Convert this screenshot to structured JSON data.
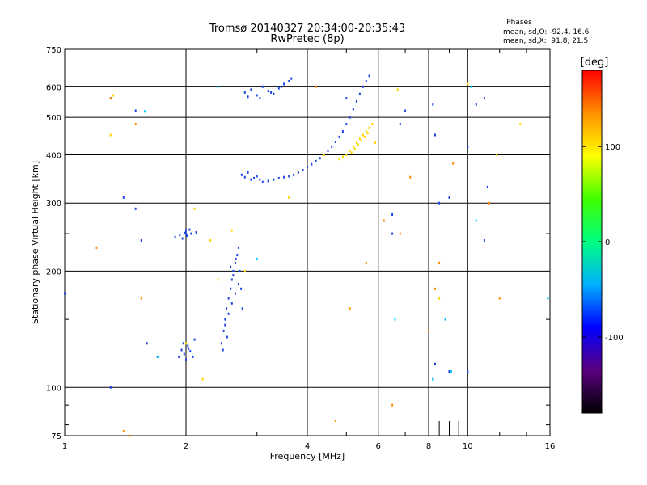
{
  "chart_data": {
    "type": "scatter",
    "title": "Tromsø 20140327 20:34:00-20:35:43",
    "subtitle": "RwPretec (8p)",
    "xlabel": "Frequency [MHz]",
    "ylabel": "Stationary phase Virtual Height [km]",
    "x_scale": "log",
    "y_scale": "log",
    "xlim": [
      1,
      16
    ],
    "ylim": [
      75,
      750
    ],
    "x_ticks": [
      1,
      2,
      4,
      6,
      8,
      10,
      16
    ],
    "y_ticks": [
      75,
      100,
      200,
      300,
      400,
      500,
      600,
      750
    ],
    "grid": true,
    "stats": {
      "heading": "Phases",
      "line1": "mean, sd,O: -92.4, 16.6",
      "line2": "mean, sd,X:  91.8, 21.5"
    },
    "colorbar": {
      "label": "[deg]",
      "min": -180,
      "max": 180,
      "ticks": [
        100,
        0,
        -100
      ],
      "colors": [
        "#000000",
        "#5a0080",
        "#0000ff",
        "#00b0ff",
        "#00ff80",
        "#40ff00",
        "#ffff00",
        "#ff9000",
        "#ff0000"
      ]
    },
    "series": [
      {
        "color": "#1e46e6",
        "x": [
          1.92,
          1.95,
          1.98,
          2.0,
          2.02,
          2.05,
          2.08,
          1.97,
          2.03,
          2.1,
          2.0,
          1.93,
          1.88,
          2.12,
          2.0,
          1.96,
          2.04,
          2.06,
          2.01,
          1.99
        ],
        "y": [
          120,
          125,
          122,
          118,
          128,
          124,
          120,
          130,
          126,
          133,
          250,
          248,
          245,
          252,
          255,
          243,
          256,
          250,
          247,
          251
        ]
      },
      {
        "color": "#1e46e6",
        "x": [
          2.45,
          2.48,
          2.5,
          2.52,
          2.55,
          2.58,
          2.6,
          2.62,
          2.65,
          2.68,
          2.7,
          2.72,
          2.74,
          2.76,
          2.5,
          2.55,
          2.6,
          2.65,
          2.7,
          2.62,
          2.58,
          2.66,
          2.53,
          2.47
        ],
        "y": [
          130,
          140,
          150,
          160,
          170,
          180,
          190,
          200,
          210,
          220,
          230,
          200,
          180,
          160,
          145,
          155,
          165,
          175,
          185,
          195,
          205,
          215,
          135,
          125
        ]
      },
      {
        "color": "#1e46e6",
        "x": [
          2.75,
          2.8,
          2.85,
          2.9,
          2.95,
          3.0,
          3.05,
          3.1,
          3.2,
          3.3,
          3.4,
          3.5,
          3.6,
          3.7,
          3.8,
          3.9,
          4.0,
          4.1,
          4.2,
          4.3,
          4.4,
          4.5,
          4.6,
          4.7,
          4.8,
          4.9,
          5.0,
          5.1,
          5.2,
          5.3,
          5.4,
          5.5,
          5.6,
          5.7
        ],
        "y": [
          355,
          350,
          360,
          345,
          348,
          352,
          345,
          340,
          342,
          345,
          348,
          350,
          352,
          355,
          360,
          365,
          372,
          378,
          385,
          392,
          400,
          410,
          420,
          432,
          445,
          460,
          480,
          500,
          525,
          550,
          575,
          600,
          620,
          640
        ]
      },
      {
        "color": "#1e46e6",
        "x": [
          2.8,
          2.9,
          3.0,
          3.1,
          3.2,
          3.3,
          3.4,
          3.5,
          3.6,
          3.65,
          2.85,
          3.05,
          3.25,
          3.45
        ],
        "y": [
          580,
          590,
          570,
          600,
          585,
          575,
          595,
          610,
          620,
          630,
          565,
          560,
          580,
          600
        ]
      },
      {
        "color": "#ffd700",
        "x": [
          5.0,
          5.1,
          5.2,
          5.3,
          5.4,
          5.5,
          5.6,
          5.7,
          5.8,
          5.65,
          5.55,
          5.45,
          5.35,
          5.25,
          5.15,
          4.9,
          4.8
        ],
        "y": [
          400,
          410,
          420,
          430,
          440,
          450,
          460,
          470,
          480,
          455,
          445,
          435,
          425,
          415,
          405,
          395,
          390
        ]
      },
      {
        "color": "#1e46e6",
        "x": [
          1.0,
          1.3,
          1.4,
          1.5,
          1.55,
          1.6,
          1.7,
          1.3,
          5.0,
          6.5,
          6.8,
          7.0,
          8.2,
          8.3,
          8.5,
          9.0,
          10.0,
          10.5,
          11.0,
          11.2,
          11.0,
          10.0,
          9.0,
          8.3,
          8.2,
          6.5,
          1.5
        ],
        "y": [
          175,
          100,
          310,
          290,
          240,
          130,
          120,
          560,
          560,
          280,
          480,
          520,
          540,
          450,
          300,
          310,
          420,
          540,
          560,
          330,
          240,
          110,
          110,
          115,
          105,
          250,
          520
        ]
      },
      {
        "color": "#ff8c00",
        "x": [
          1.2,
          1.3,
          1.5,
          1.55,
          1.4,
          4.7,
          5.1,
          5.6,
          6.2,
          6.5,
          6.8,
          7.2,
          8.0,
          8.3,
          8.5,
          9.2,
          11.3,
          12.0,
          1.45,
          4.2
        ],
        "y": [
          230,
          560,
          480,
          170,
          77,
          82,
          160,
          210,
          270,
          90,
          250,
          350,
          140,
          180,
          210,
          380,
          300,
          170,
          75,
          600
        ]
      },
      {
        "color": "#ffd700",
        "x": [
          1.3,
          1.32,
          2.0,
          2.2,
          2.4,
          2.6,
          2.8,
          3.6,
          4.4,
          5.9,
          6.7,
          8.5,
          10.0,
          11.8,
          13.5,
          2.3,
          2.1
        ],
        "y": [
          450,
          570,
          130,
          105,
          190,
          255,
          200,
          310,
          400,
          430,
          590,
          170,
          610,
          400,
          480,
          240,
          290
        ]
      },
      {
        "color": "#00c8ff",
        "x": [
          1.58,
          2.4,
          3.0,
          6.6,
          8.2,
          9.1,
          10.2,
          10.5,
          15.8,
          1.7,
          8.8
        ],
        "y": [
          518,
          600,
          215,
          150,
          105,
          110,
          600,
          270,
          170,
          120,
          150
        ]
      }
    ]
  }
}
